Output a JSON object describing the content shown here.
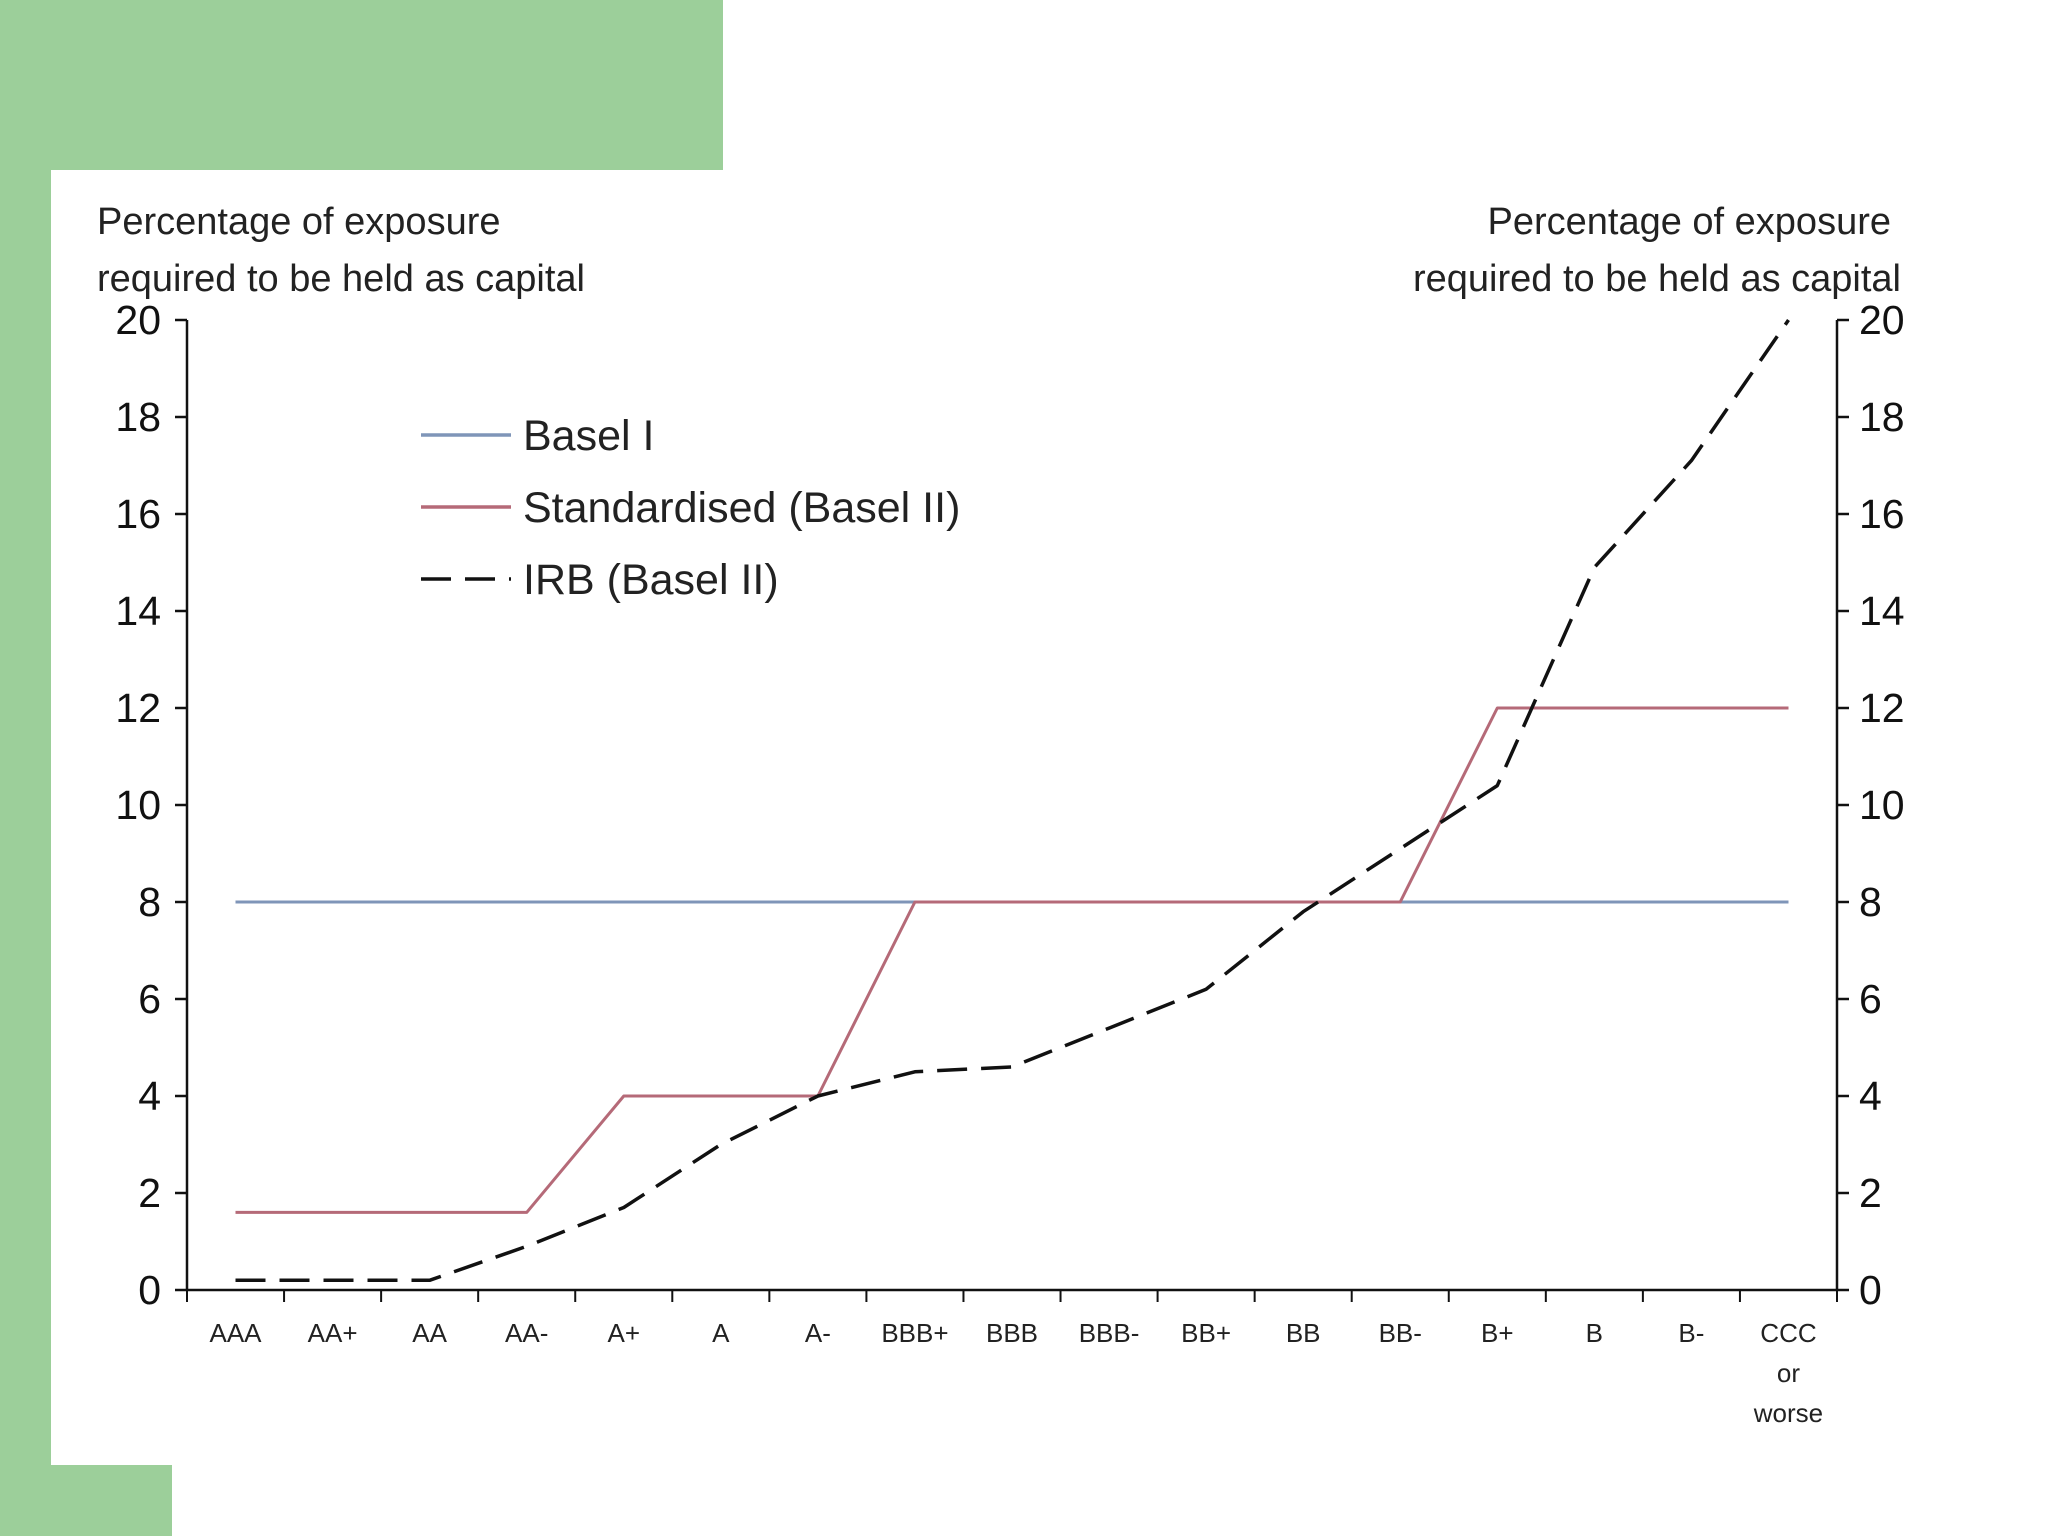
{
  "chart_data": {
    "type": "line",
    "y_axis_title_left": [
      "Percentage of exposure",
      "required to be held as capital"
    ],
    "y_axis_title_right": [
      "Percentage of exposure",
      "required to be held as capital"
    ],
    "ylim": [
      0,
      20
    ],
    "yticks": [
      0,
      2,
      4,
      6,
      8,
      10,
      12,
      14,
      16,
      18,
      20
    ],
    "categories": [
      [
        "AAA"
      ],
      [
        "AA+"
      ],
      [
        "AA"
      ],
      [
        "AA-"
      ],
      [
        "A+"
      ],
      [
        "A"
      ],
      [
        "A-"
      ],
      [
        "BBB+"
      ],
      [
        "BBB"
      ],
      [
        "BBB-"
      ],
      [
        "BB+"
      ],
      [
        "BB"
      ],
      [
        "BB-"
      ],
      [
        "B+"
      ],
      [
        "B"
      ],
      [
        "B-"
      ],
      [
        "CCC",
        "or",
        "worse"
      ]
    ],
    "series": [
      {
        "name": "Basel I",
        "color": "#7f95b8",
        "style": "solid",
        "values": [
          8,
          8,
          8,
          8,
          8,
          8,
          8,
          8,
          8,
          8,
          8,
          8,
          8,
          8,
          8,
          8,
          8
        ]
      },
      {
        "name": "Standardised (Basel II)",
        "color": "#b56a78",
        "style": "solid",
        "values": [
          1.6,
          1.6,
          1.6,
          1.6,
          4,
          4,
          4,
          8,
          8,
          8,
          8,
          8,
          8,
          12,
          12,
          12,
          12
        ]
      },
      {
        "name": "IRB (Basel II)",
        "color": "#111111",
        "style": "dashed",
        "values": [
          0.2,
          0.2,
          0.2,
          0.9,
          1.7,
          3.0,
          4.0,
          4.5,
          4.6,
          5.4,
          6.2,
          7.8,
          9.1,
          10.4,
          14.9,
          17.1,
          20.0
        ]
      }
    ],
    "legend_position": "top-left",
    "grid": false
  }
}
